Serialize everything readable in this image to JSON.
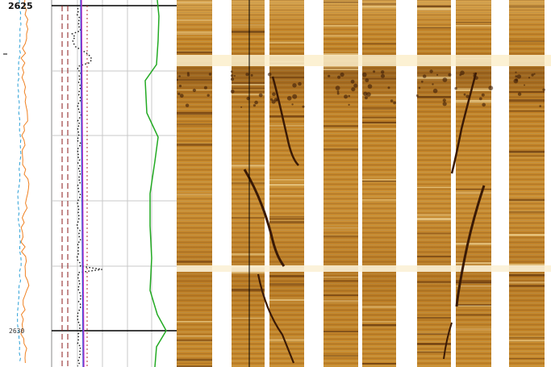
{
  "depth_track": {
    "top_label": "2625",
    "bottom_label": "2630"
  },
  "curve_track": {
    "colors": {
      "grid": "#c8c8c8",
      "major_line": "#000000",
      "dashed_red": "#8b1a1a",
      "dotted_black": "#111111",
      "magenta": "#cc33cc",
      "blue": "#3344cc",
      "green": "#22aa22",
      "orange": "#f08020",
      "light_blue": "#2a9fd6"
    }
  },
  "image_track": {
    "pad_count": 7,
    "colors": {
      "base": "#c98a2a",
      "light": "#f2d79a",
      "dark": "#5a2f0c",
      "gap": "#ffffff"
    }
  }
}
